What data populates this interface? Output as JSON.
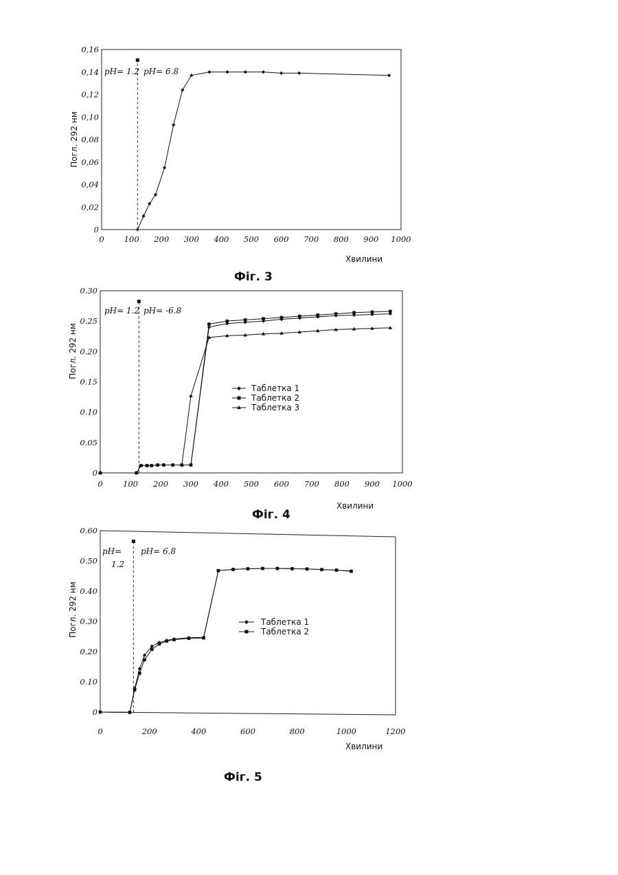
{
  "chart_data": [
    {
      "type": "line",
      "figure_label": "Фіг. 3",
      "xlabel": "Хвилини",
      "ylabel": "Погл. 292 нм",
      "xlim": [
        0,
        1000
      ],
      "ylim": [
        0,
        0.16
      ],
      "x_ticks": [
        "0",
        "100",
        "200",
        "300",
        "400",
        "500",
        "600",
        "700",
        "800",
        "900",
        "1000"
      ],
      "y_ticks": [
        "0",
        "0,02",
        "0,04",
        "0,06",
        "0,08",
        "0,10",
        "0,12",
        "0,14",
        "0,16"
      ],
      "annotations": {
        "left": "pH= 1.2",
        "right": "pH= 6.8",
        "divider_x": 120
      },
      "legend": null,
      "series": [
        {
          "marker": "diamond",
          "x": [
            120,
            140,
            160,
            180,
            210,
            240,
            270,
            300,
            360,
            420,
            480,
            540,
            600,
            660,
            960
          ],
          "y": [
            0,
            0.012,
            0.023,
            0.031,
            0.055,
            0.093,
            0.124,
            0.137,
            0.14,
            0.14,
            0.14,
            0.14,
            0.139,
            0.139,
            0.137
          ]
        }
      ]
    },
    {
      "type": "line",
      "figure_label": "Фіг. 4",
      "xlabel": "Хвилини",
      "ylabel": "Погл. 292 нм",
      "xlim": [
        0,
        1000
      ],
      "ylim": [
        0,
        0.3
      ],
      "x_ticks": [
        "0",
        "100",
        "200",
        "300",
        "400",
        "500",
        "600",
        "700",
        "800",
        "900",
        "1000"
      ],
      "y_ticks": [
        "0",
        "0.05",
        "0.10",
        "0.15",
        "0.20",
        "0.25",
        "0.30"
      ],
      "annotations": {
        "left": "pH= 1.2",
        "right": "pH= -6.8",
        "divider_x": 128
      },
      "legend": [
        "Таблетка 1",
        "Таблетка 2",
        "Таблетка 3"
      ],
      "series": [
        {
          "name": "Таблетка 1",
          "marker": "diamond",
          "x": [
            0,
            120,
            135,
            155,
            170,
            190,
            210,
            240,
            270,
            300,
            360,
            420,
            480,
            540,
            600,
            660,
            720,
            780,
            840,
            900,
            960
          ],
          "y": [
            0,
            0,
            0.012,
            0.012,
            0.012,
            0.013,
            0.013,
            0.013,
            0.013,
            0.013,
            0.24,
            0.246,
            0.248,
            0.25,
            0.253,
            0.255,
            0.257,
            0.259,
            0.26,
            0.261,
            0.262
          ]
        },
        {
          "name": "Таблетка 2",
          "marker": "square",
          "x": [
            0,
            120,
            135,
            155,
            170,
            190,
            210,
            240,
            270,
            300,
            360,
            420,
            480,
            540,
            600,
            660,
            720,
            780,
            840,
            900,
            960
          ],
          "y": [
            0,
            0,
            0.012,
            0.012,
            0.012,
            0.013,
            0.013,
            0.013,
            0.013,
            0.013,
            0.245,
            0.25,
            0.252,
            0.254,
            0.256,
            0.258,
            0.26,
            0.262,
            0.264,
            0.265,
            0.266
          ]
        },
        {
          "name": "Таблетка 3",
          "marker": "triangle",
          "x": [
            0,
            120,
            135,
            155,
            170,
            190,
            210,
            240,
            270,
            300,
            360,
            420,
            480,
            540,
            600,
            660,
            720,
            780,
            840,
            900,
            960
          ],
          "y": [
            0,
            0,
            0.012,
            0.012,
            0.012,
            0.013,
            0.013,
            0.013,
            0.013,
            0.127,
            0.223,
            0.226,
            0.227,
            0.229,
            0.23,
            0.232,
            0.234,
            0.236,
            0.237,
            0.238,
            0.239
          ]
        }
      ]
    },
    {
      "type": "line",
      "figure_label": "Фіг. 5",
      "xlabel": "Хвилини",
      "ylabel": "Погл. 292 нм",
      "xlim": [
        0,
        1200
      ],
      "ylim": [
        0,
        0.6
      ],
      "x_ticks": [
        "0",
        "200",
        "400",
        "600",
        "800",
        "1000",
        "1200"
      ],
      "y_ticks": [
        "0",
        "0.10",
        "0.20",
        "0.30",
        "0.40",
        "0.50",
        "0.60"
      ],
      "annotations": {
        "left_line1": "pH=",
        "left_line2": "1.2",
        "right": "pH= 6.8",
        "divider_x": 135
      },
      "legend": [
        "Таблетка 1",
        "Таблетка 2"
      ],
      "series": [
        {
          "name": "Таблетка 1",
          "marker": "diamond",
          "x": [
            0,
            120,
            140,
            160,
            180,
            210,
            240,
            270,
            300,
            360,
            420,
            480,
            540,
            600,
            660,
            720,
            780,
            840,
            900,
            960,
            1020
          ],
          "y": [
            0,
            0,
            0.08,
            0.145,
            0.19,
            0.22,
            0.233,
            0.24,
            0.245,
            0.25,
            0.252,
            0.475,
            0.48,
            0.483,
            0.485,
            0.486,
            0.486,
            0.486,
            0.485,
            0.484,
            0.482
          ]
        },
        {
          "name": "Таблетка 2",
          "marker": "square",
          "x": [
            0,
            120,
            140,
            160,
            180,
            210,
            240,
            270,
            300,
            360,
            420,
            480,
            540,
            600,
            660,
            720,
            780,
            840,
            900,
            960,
            1020
          ],
          "y": [
            0,
            0,
            0.075,
            0.13,
            0.175,
            0.21,
            0.228,
            0.238,
            0.243,
            0.248,
            0.25,
            0.475,
            0.48,
            0.483,
            0.485,
            0.486,
            0.486,
            0.486,
            0.485,
            0.484,
            0.481
          ]
        }
      ]
    }
  ]
}
